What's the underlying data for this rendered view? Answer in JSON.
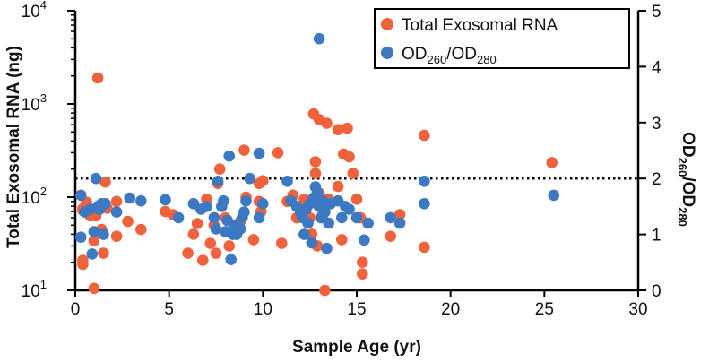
{
  "chart_data": {
    "type": "scatter",
    "xlabel": "Sample Age (yr)",
    "ylabel_left": "Total Exosomal RNA (ng)",
    "ylabel_right": {
      "base": "OD",
      "sub1": "260",
      "mid": "/OD",
      "sub2": "280"
    },
    "xlim": [
      0,
      30
    ],
    "x_ticks": [
      "0",
      "5",
      "10",
      "15",
      "20",
      "25",
      "30"
    ],
    "y_left": {
      "scale": "log",
      "lim": [
        10,
        10000
      ],
      "ticks": [
        {
          "base": "10",
          "exp": "1"
        },
        {
          "base": "10",
          "exp": "2"
        },
        {
          "base": "10",
          "exp": "3"
        },
        {
          "base": "10",
          "exp": "4"
        }
      ]
    },
    "y_right": {
      "scale": "linear",
      "lim": [
        0,
        5
      ],
      "ticks": [
        "0",
        "1",
        "2",
        "3",
        "4",
        "5"
      ]
    },
    "reference_line": {
      "axis": "right",
      "value": 2.0,
      "style": "dotted"
    },
    "legend": {
      "position": "top-right",
      "entries": [
        {
          "label": "Total Exosomal RNA"
        },
        {
          "base": "OD",
          "sub1": "260",
          "mid": "/OD",
          "sub2": "280"
        }
      ]
    },
    "colors": {
      "rna": "#f0623c",
      "od": "#3d78c2"
    },
    "series": [
      {
        "key": "rna",
        "axis": "left",
        "points": [
          [
            0.4,
            21
          ],
          [
            0.4,
            19
          ],
          [
            0.4,
            72
          ],
          [
            0.4,
            75
          ],
          [
            0.6,
            88
          ],
          [
            0.8,
            63
          ],
          [
            1.0,
            10.5
          ],
          [
            1.0,
            34
          ],
          [
            1.1,
            63
          ],
          [
            1.2,
            1900
          ],
          [
            1.3,
            80
          ],
          [
            1.4,
            45
          ],
          [
            1.5,
            25
          ],
          [
            1.6,
            145
          ],
          [
            1.7,
            76
          ],
          [
            2.2,
            90
          ],
          [
            2.2,
            38
          ],
          [
            2.8,
            55
          ],
          [
            3.5,
            45
          ],
          [
            4.8,
            70
          ],
          [
            5.2,
            65
          ],
          [
            6.0,
            25
          ],
          [
            6.3,
            40
          ],
          [
            6.5,
            52
          ],
          [
            6.8,
            21
          ],
          [
            7.0,
            95
          ],
          [
            7.2,
            32
          ],
          [
            7.4,
            50
          ],
          [
            7.5,
            25
          ],
          [
            7.6,
            140
          ],
          [
            7.7,
            200
          ],
          [
            8.0,
            60
          ],
          [
            8.2,
            30
          ],
          [
            8.5,
            45
          ],
          [
            8.8,
            55
          ],
          [
            9.0,
            320
          ],
          [
            9.1,
            100
          ],
          [
            9.5,
            35
          ],
          [
            9.8,
            140
          ],
          [
            9.8,
            90
          ],
          [
            9.9,
            70
          ],
          [
            10.0,
            150
          ],
          [
            10.8,
            300
          ],
          [
            11.0,
            32
          ],
          [
            11.3,
            90
          ],
          [
            11.6,
            105
          ],
          [
            11.8,
            60
          ],
          [
            12.2,
            95
          ],
          [
            12.3,
            90
          ],
          [
            12.5,
            60
          ],
          [
            12.6,
            40
          ],
          [
            12.7,
            780
          ],
          [
            12.8,
            240
          ],
          [
            12.8,
            180
          ],
          [
            12.9,
            30
          ],
          [
            13.0,
            680
          ],
          [
            13.0,
            110
          ],
          [
            13.1,
            95
          ],
          [
            13.2,
            65
          ],
          [
            13.3,
            10
          ],
          [
            13.4,
            620
          ],
          [
            13.5,
            95
          ],
          [
            13.6,
            85
          ],
          [
            14.0,
            530
          ],
          [
            14.0,
            130
          ],
          [
            14.2,
            35
          ],
          [
            14.3,
            290
          ],
          [
            14.5,
            550
          ],
          [
            14.6,
            270
          ],
          [
            14.8,
            180
          ],
          [
            15.0,
            95
          ],
          [
            15.2,
            60
          ],
          [
            15.3,
            20
          ],
          [
            15.3,
            15
          ],
          [
            16.8,
            38
          ],
          [
            17.3,
            65
          ],
          [
            18.6,
            460
          ],
          [
            18.6,
            29
          ],
          [
            25.4,
            235
          ]
        ]
      },
      {
        "key": "od",
        "axis": "right",
        "points": [
          [
            0.3,
            1.7
          ],
          [
            0.3,
            0.95
          ],
          [
            0.5,
            1.4
          ],
          [
            0.8,
            1.45
          ],
          [
            0.9,
            0.65
          ],
          [
            1.0,
            1.05
          ],
          [
            1.1,
            2.0
          ],
          [
            1.2,
            1.5
          ],
          [
            1.3,
            1.45
          ],
          [
            1.4,
            1.55
          ],
          [
            1.5,
            1.0
          ],
          [
            1.6,
            1.55
          ],
          [
            2.2,
            1.4
          ],
          [
            2.9,
            1.65
          ],
          [
            3.5,
            1.6
          ],
          [
            4.8,
            1.62
          ],
          [
            5.5,
            1.3
          ],
          [
            6.3,
            1.55
          ],
          [
            6.7,
            1.45
          ],
          [
            7.0,
            1.5
          ],
          [
            7.4,
            1.3
          ],
          [
            7.5,
            1.1
          ],
          [
            7.6,
            1.95
          ],
          [
            7.8,
            1.5
          ],
          [
            7.9,
            1.6
          ],
          [
            8.0,
            1.05
          ],
          [
            8.1,
            1.25
          ],
          [
            8.2,
            2.4
          ],
          [
            8.3,
            0.55
          ],
          [
            8.4,
            1.0
          ],
          [
            8.5,
            1.15
          ],
          [
            8.6,
            1.0
          ],
          [
            8.8,
            1.1
          ],
          [
            8.9,
            1.3
          ],
          [
            9.0,
            1.4
          ],
          [
            9.1,
            1.6
          ],
          [
            9.3,
            2.0
          ],
          [
            9.8,
            2.45
          ],
          [
            9.8,
            1.3
          ],
          [
            10.0,
            1.55
          ],
          [
            11.3,
            1.95
          ],
          [
            11.5,
            1.6
          ],
          [
            11.8,
            1.5
          ],
          [
            12.0,
            1.4
          ],
          [
            12.1,
            1.3
          ],
          [
            12.2,
            1.0
          ],
          [
            12.3,
            1.45
          ],
          [
            12.4,
            1.2
          ],
          [
            12.5,
            1.55
          ],
          [
            12.6,
            0.85
          ],
          [
            12.7,
            1.65
          ],
          [
            12.8,
            1.85
          ],
          [
            12.9,
            1.75
          ],
          [
            13.0,
            4.5
          ],
          [
            13.0,
            1.5
          ],
          [
            13.1,
            1.3
          ],
          [
            13.2,
            1.6
          ],
          [
            13.3,
            1.4
          ],
          [
            13.4,
            0.75
          ],
          [
            13.5,
            1.2
          ],
          [
            13.6,
            1.55
          ],
          [
            14.0,
            1.6
          ],
          [
            14.2,
            1.3
          ],
          [
            14.4,
            1.5
          ],
          [
            14.6,
            1.45
          ],
          [
            15.0,
            1.3
          ],
          [
            15.4,
            0.9
          ],
          [
            15.6,
            1.2
          ],
          [
            16.8,
            1.3
          ],
          [
            17.3,
            1.2
          ],
          [
            18.6,
            1.55
          ],
          [
            18.6,
            1.95
          ],
          [
            25.5,
            1.7
          ]
        ]
      }
    ]
  }
}
